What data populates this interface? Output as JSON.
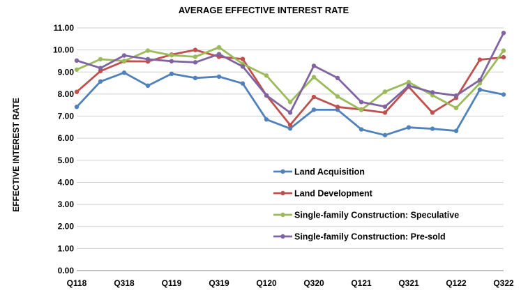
{
  "chart_data": {
    "type": "line",
    "title": "AVERAGE EFFECTIVE INTEREST RATE",
    "ylabel": "EFFECTIVE INTEREST RATE",
    "xlabel": "",
    "ylim": [
      0,
      11
    ],
    "y_ticks": [
      "0.00",
      "1.00",
      "2.00",
      "3.00",
      "4.00",
      "5.00",
      "6.00",
      "7.00",
      "8.00",
      "9.00",
      "10.00",
      "11.00"
    ],
    "categories": [
      "Q118",
      "Q218",
      "Q318",
      "Q418",
      "Q119",
      "Q219",
      "Q319",
      "Q419",
      "Q120",
      "Q220",
      "Q320",
      "Q420",
      "Q121",
      "Q221",
      "Q321",
      "Q421",
      "Q122",
      "Q222",
      "Q322"
    ],
    "x_tick_labels": [
      "Q118",
      "",
      "Q318",
      "",
      "Q119",
      "",
      "Q319",
      "",
      "Q120",
      "",
      "Q320",
      "",
      "Q121",
      "",
      "Q321",
      "",
      "Q122",
      "",
      "Q322"
    ],
    "grid": true,
    "legend_position": "center-right",
    "series": [
      {
        "name": "Land Acquisition",
        "color": "#4f81bd",
        "values": [
          7.42,
          8.57,
          8.97,
          8.38,
          8.92,
          8.73,
          8.79,
          8.48,
          6.85,
          6.44,
          7.29,
          7.29,
          6.4,
          6.14,
          6.49,
          6.43,
          6.33,
          8.2,
          7.98
        ]
      },
      {
        "name": "Land Development",
        "color": "#c0504d",
        "values": [
          8.1,
          9.04,
          9.49,
          9.48,
          9.79,
          10.0,
          9.69,
          9.59,
          7.94,
          6.6,
          7.87,
          7.42,
          7.3,
          7.16,
          8.33,
          7.16,
          7.83,
          9.56,
          9.67
        ]
      },
      {
        "name": "Single-family Construction: Speculative",
        "color": "#9bbb59",
        "values": [
          9.11,
          9.58,
          9.5,
          9.97,
          9.76,
          9.69,
          10.12,
          9.37,
          8.84,
          7.64,
          8.77,
          7.89,
          7.28,
          8.11,
          8.54,
          7.95,
          7.37,
          8.49,
          9.97
        ]
      },
      {
        "name": "Single-family Construction: Pre-sold",
        "color": "#8064a2",
        "values": [
          9.52,
          9.18,
          9.75,
          9.58,
          9.49,
          9.44,
          9.81,
          9.25,
          7.94,
          7.16,
          9.28,
          8.73,
          7.64,
          7.43,
          8.38,
          8.08,
          7.93,
          8.64,
          10.77
        ]
      }
    ]
  }
}
